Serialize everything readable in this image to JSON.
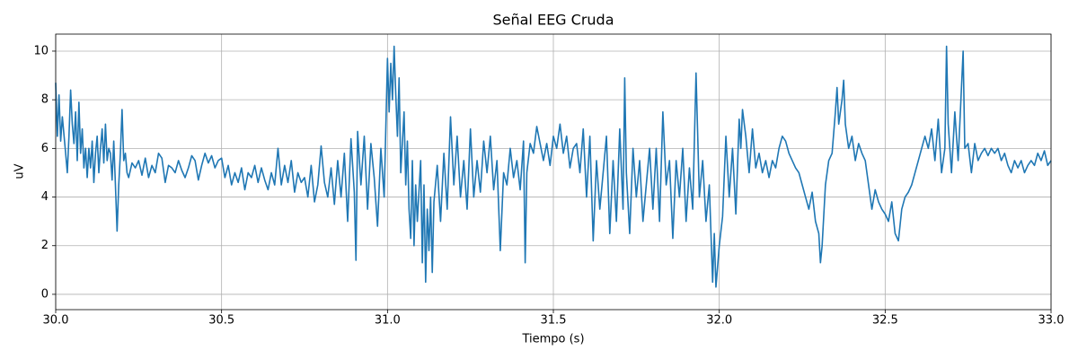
{
  "chart_data": {
    "type": "line",
    "title": "Señal EEG Cruda",
    "xlabel": "Tiempo (s)",
    "ylabel": "uV",
    "color": "#1f77b4",
    "grid": true,
    "xlim": [
      30,
      33
    ],
    "ylim": [
      -0.63,
      10.7
    ],
    "xticks": [
      {
        "value": 30,
        "label": "30.0"
      },
      30.5,
      {
        "value": 31,
        "label": "31.0"
      },
      31.5,
      {
        "value": 32,
        "label": "32.0"
      },
      32.5,
      {
        "value": 33,
        "label": "33.0"
      }
    ],
    "yticks": [
      0,
      2,
      4,
      6,
      8,
      10
    ],
    "x": [
      30.0,
      30.005,
      30.01,
      30.015,
      30.02,
      30.03,
      30.035,
      30.04,
      30.045,
      30.05,
      30.055,
      30.06,
      30.065,
      30.07,
      30.075,
      30.08,
      30.085,
      30.09,
      30.095,
      30.1,
      30.105,
      30.11,
      30.115,
      30.12,
      30.125,
      30.13,
      30.135,
      30.14,
      30.145,
      30.15,
      30.155,
      30.16,
      30.165,
      30.17,
      30.175,
      30.18,
      30.185,
      30.19,
      30.195,
      30.2,
      30.205,
      30.21,
      30.215,
      30.22,
      30.23,
      30.24,
      30.25,
      30.26,
      30.27,
      30.28,
      30.29,
      30.3,
      30.31,
      30.32,
      30.33,
      30.34,
      30.35,
      30.36,
      30.37,
      30.38,
      30.39,
      30.4,
      30.41,
      30.42,
      30.43,
      30.44,
      30.45,
      30.46,
      30.47,
      30.48,
      30.49,
      30.5,
      30.51,
      30.52,
      30.53,
      30.54,
      30.55,
      30.56,
      30.57,
      30.58,
      30.59,
      30.6,
      30.61,
      30.62,
      30.63,
      30.64,
      30.65,
      30.66,
      30.67,
      30.68,
      30.69,
      30.7,
      30.71,
      30.72,
      30.73,
      30.74,
      30.75,
      30.76,
      30.77,
      30.78,
      30.79,
      30.8,
      30.81,
      30.82,
      30.83,
      30.84,
      30.85,
      30.86,
      30.87,
      30.88,
      30.89,
      30.9,
      30.905,
      30.91,
      30.92,
      30.93,
      30.94,
      30.95,
      30.96,
      30.97,
      30.98,
      30.99,
      31.0,
      31.005,
      31.01,
      31.015,
      31.02,
      31.025,
      31.03,
      31.035,
      31.04,
      31.05,
      31.055,
      31.06,
      31.065,
      31.07,
      31.075,
      31.08,
      31.085,
      31.09,
      31.1,
      31.105,
      31.11,
      31.115,
      31.12,
      31.125,
      31.13,
      31.135,
      31.14,
      31.15,
      31.16,
      31.17,
      31.18,
      31.19,
      31.2,
      31.21,
      31.22,
      31.23,
      31.24,
      31.25,
      31.26,
      31.27,
      31.28,
      31.29,
      31.3,
      31.31,
      31.32,
      31.33,
      31.34,
      31.35,
      31.36,
      31.37,
      31.38,
      31.39,
      31.4,
      31.41,
      31.415,
      31.42,
      31.43,
      31.44,
      31.45,
      31.46,
      31.47,
      31.48,
      31.49,
      31.5,
      31.51,
      31.52,
      31.53,
      31.54,
      31.55,
      31.56,
      31.57,
      31.58,
      31.59,
      31.6,
      31.61,
      31.62,
      31.63,
      31.64,
      31.65,
      31.66,
      31.67,
      31.68,
      31.69,
      31.7,
      31.71,
      31.715,
      31.72,
      31.73,
      31.74,
      31.75,
      31.76,
      31.77,
      31.78,
      31.79,
      31.8,
      31.81,
      31.82,
      31.83,
      31.84,
      31.85,
      31.86,
      31.87,
      31.88,
      31.89,
      31.9,
      31.91,
      31.92,
      31.93,
      31.94,
      31.95,
      31.96,
      31.97,
      31.98,
      31.985,
      31.99,
      32.0,
      32.01,
      32.02,
      32.03,
      32.04,
      32.05,
      32.06,
      32.065,
      32.07,
      32.08,
      32.09,
      32.1,
      32.11,
      32.12,
      32.13,
      32.14,
      32.15,
      32.16,
      32.17,
      32.18,
      32.19,
      32.2,
      32.21,
      32.22,
      32.23,
      32.24,
      32.25,
      32.26,
      32.27,
      32.28,
      32.29,
      32.3,
      32.305,
      32.31,
      32.32,
      32.33,
      32.34,
      32.35,
      32.355,
      32.36,
      32.37,
      32.375,
      32.38,
      32.39,
      32.4,
      32.41,
      32.42,
      32.43,
      32.44,
      32.45,
      32.46,
      32.47,
      32.48,
      32.49,
      32.5,
      32.51,
      32.52,
      32.53,
      32.54,
      32.55,
      32.56,
      32.57,
      32.58,
      32.59,
      32.6,
      32.61,
      32.62,
      32.63,
      32.64,
      32.65,
      32.66,
      32.67,
      32.68,
      32.685,
      32.69,
      32.7,
      32.71,
      32.72,
      32.73,
      32.735,
      32.74,
      32.75,
      32.76,
      32.77,
      32.78,
      32.79,
      32.8,
      32.81,
      32.82,
      32.83,
      32.84,
      32.85,
      32.86,
      32.87,
      32.88,
      32.89,
      32.9,
      32.91,
      32.92,
      32.93,
      32.94,
      32.95,
      32.96,
      32.97,
      32.98,
      32.99,
      33.0
    ],
    "values": [
      8.7,
      6.5,
      8.2,
      6.3,
      7.3,
      5.8,
      5.0,
      6.5,
      8.4,
      7.0,
      6.2,
      7.5,
      5.5,
      7.9,
      5.8,
      6.8,
      5.2,
      6.0,
      4.8,
      6.0,
      5.2,
      6.3,
      4.6,
      5.8,
      6.5,
      5.0,
      6.0,
      6.8,
      5.4,
      7.0,
      5.5,
      6.0,
      5.8,
      4.7,
      6.3,
      4.5,
      2.6,
      4.5,
      5.8,
      7.6,
      5.5,
      5.8,
      5.0,
      4.8,
      5.4,
      5.2,
      5.5,
      4.9,
      5.6,
      4.8,
      5.3,
      5.0,
      5.8,
      5.6,
      4.6,
      5.3,
      5.2,
      5.0,
      5.5,
      5.1,
      4.8,
      5.2,
      5.7,
      5.5,
      4.7,
      5.3,
      5.8,
      5.4,
      5.7,
      5.2,
      5.5,
      5.6,
      4.8,
      5.3,
      4.5,
      5.0,
      4.6,
      5.2,
      4.3,
      5.0,
      4.8,
      5.3,
      4.6,
      5.2,
      4.7,
      4.3,
      5.0,
      4.5,
      6.0,
      4.5,
      5.3,
      4.6,
      5.5,
      4.2,
      5.0,
      4.6,
      4.8,
      4.0,
      5.3,
      3.8,
      4.5,
      6.1,
      4.6,
      4.0,
      5.2,
      3.7,
      5.5,
      4.0,
      5.8,
      3.0,
      6.4,
      4.2,
      1.4,
      6.7,
      4.5,
      6.5,
      3.5,
      6.2,
      4.8,
      2.8,
      6.0,
      4.0,
      9.7,
      7.5,
      9.5,
      8.0,
      10.2,
      8.2,
      6.5,
      8.9,
      5.0,
      7.5,
      4.5,
      6.3,
      3.5,
      2.3,
      5.5,
      2.0,
      4.5,
      3.0,
      5.5,
      1.3,
      4.5,
      0.5,
      3.5,
      1.8,
      4.0,
      0.9,
      3.8,
      5.3,
      3.0,
      5.8,
      3.5,
      7.3,
      4.5,
      6.5,
      4.0,
      5.5,
      3.5,
      6.8,
      4.0,
      5.5,
      4.2,
      6.3,
      5.0,
      6.5,
      4.3,
      5.5,
      1.8,
      5.0,
      4.5,
      6.0,
      4.8,
      5.5,
      4.3,
      6.3,
      1.3,
      5.0,
      6.2,
      5.8,
      6.9,
      6.2,
      5.5,
      6.2,
      5.3,
      6.5,
      6.0,
      7.0,
      5.8,
      6.5,
      5.2,
      6.0,
      6.2,
      5.0,
      6.8,
      4.0,
      6.5,
      2.2,
      5.5,
      3.5,
      5.0,
      6.5,
      2.5,
      5.5,
      3.0,
      6.8,
      3.5,
      8.9,
      5.0,
      2.5,
      6.0,
      4.0,
      5.5,
      3.0,
      4.5,
      6.0,
      3.5,
      6.0,
      3.0,
      7.5,
      4.5,
      5.5,
      2.3,
      5.5,
      4.0,
      6.0,
      3.0,
      5.2,
      3.5,
      9.1,
      4.0,
      5.5,
      3.0,
      4.5,
      0.5,
      2.5,
      0.3,
      2.0,
      3.2,
      6.5,
      4.0,
      6.0,
      3.3,
      7.2,
      6.0,
      7.6,
      6.5,
      5.0,
      6.8,
      5.2,
      5.8,
      5.0,
      5.5,
      4.8,
      5.5,
      5.2,
      6.0,
      6.5,
      6.3,
      5.8,
      5.5,
      5.2,
      5.0,
      4.5,
      4.0,
      3.5,
      4.2,
      3.0,
      2.5,
      1.3,
      2.0,
      4.5,
      5.5,
      5.8,
      7.5,
      8.5,
      7.0,
      8.0,
      8.8,
      7.0,
      6.0,
      6.5,
      5.5,
      6.2,
      5.8,
      5.5,
      4.5,
      3.5,
      4.3,
      3.8,
      3.5,
      3.3,
      3.0,
      3.8,
      2.5,
      2.2,
      3.5,
      4.0,
      4.2,
      4.5,
      5.0,
      5.5,
      6.0,
      6.5,
      6.0,
      6.8,
      5.5,
      7.2,
      5.0,
      6.0,
      10.2,
      7.0,
      5.0,
      7.5,
      5.5,
      8.5,
      10.0,
      6.0,
      6.2,
      5.0,
      6.2,
      5.5,
      5.8,
      6.0,
      5.7,
      6.0,
      5.8,
      6.0,
      5.5,
      5.8,
      5.3,
      5.0,
      5.5,
      5.2,
      5.5,
      5.0,
      5.3,
      5.5,
      5.3,
      5.8,
      5.5,
      5.9,
      5.3,
      5.5
    ]
  }
}
